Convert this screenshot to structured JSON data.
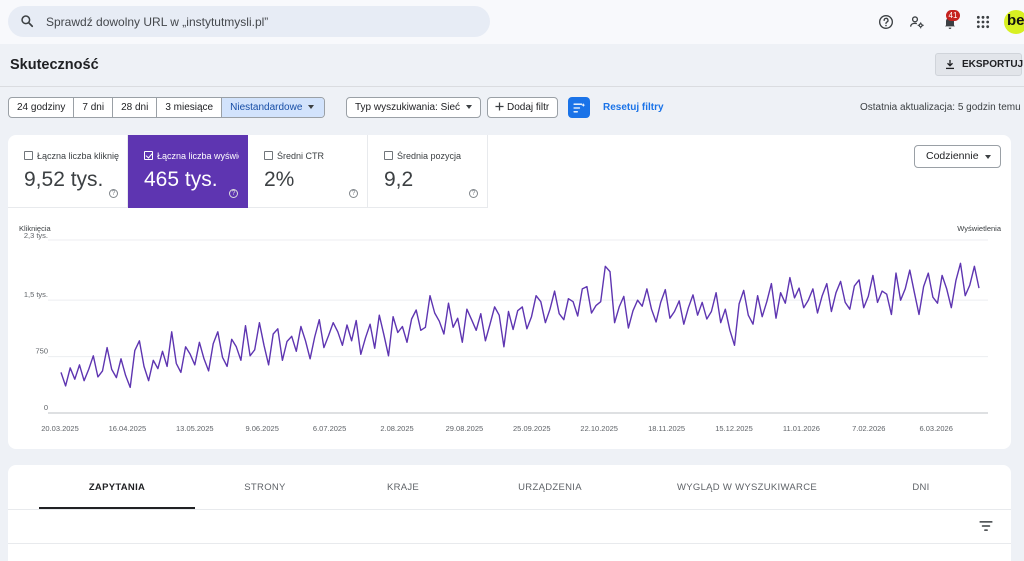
{
  "search": {
    "placeholder": "Sprawdź dowolny URL w „instytutmysli.pl”"
  },
  "topbar": {
    "notification_count": "41",
    "avatar_text": "be"
  },
  "header": {
    "title": "Skuteczność",
    "export_label": "EKSPORTUJ"
  },
  "date_ranges": [
    {
      "label": "24 godziny",
      "active": false
    },
    {
      "label": "7 dni",
      "active": false
    },
    {
      "label": "28 dni",
      "active": false
    },
    {
      "label": "3 miesiące",
      "active": false
    },
    {
      "label": "Niestandardowe",
      "active": true
    }
  ],
  "filters": {
    "search_type": "Typ wyszukiwania: Sieć",
    "add_filter": "Dodaj filtr",
    "reset": "Resetuj filtry",
    "last_update": "Ostatnia aktualizacja: 5 godzin temu"
  },
  "metrics": [
    {
      "label": "Łączna liczba kliknięć",
      "value": "9,52 tys.",
      "selected": false
    },
    {
      "label": "Łączna liczba wyświetleń",
      "value": "465 tys.",
      "selected": true
    },
    {
      "label": "Średni CTR",
      "value": "2%",
      "selected": false
    },
    {
      "label": "Średnia pozycja",
      "value": "9,2",
      "selected": false
    }
  ],
  "period": {
    "selected": "Codziennie"
  },
  "chart_data": {
    "type": "line",
    "left_axis_title": "Kliknięcia",
    "right_axis_title": "Wyświetlenia",
    "y_tick_labels": [
      "0",
      "750",
      "1,5 tys.",
      "2,3 tys."
    ],
    "y_tick_values": [
      0,
      750,
      1500,
      2300
    ],
    "ylim": [
      0,
      2300
    ],
    "grid": true,
    "x_tick_labels": [
      "20.03.2025",
      "16.04.2025",
      "13.05.2025",
      "9.06.2025",
      "6.07.2025",
      "2.08.2025",
      "29.08.2025",
      "25.09.2025",
      "22.10.2025",
      "18.11.2025",
      "15.12.2025",
      "11.01.2026",
      "7.02.2026",
      "6.03.2026"
    ],
    "x_start": "2025-03-20",
    "x_end": "2026-03-24",
    "series": [
      {
        "color": "#5e35b1",
        "values": [
          540,
          360,
          600,
          450,
          640,
          430,
          580,
          760,
          480,
          560,
          870,
          580,
          470,
          720,
          500,
          340,
          830,
          960,
          620,
          430,
          700,
          590,
          820,
          620,
          1080,
          660,
          540,
          880,
          780,
          640,
          940,
          720,
          560,
          920,
          1080,
          740,
          620,
          980,
          880,
          700,
          1160,
          760,
          840,
          1200,
          900,
          640,
          1050,
          1120,
          700,
          950,
          1020,
          820,
          1150,
          960,
          720,
          1010,
          1240,
          870,
          1030,
          1200,
          1080,
          900,
          1170,
          960,
          1230,
          780,
          1000,
          1180,
          860,
          1300,
          1040,
          760,
          1280,
          1070,
          1150,
          940,
          1250,
          1370,
          1100,
          1140,
          1560,
          1330,
          1220,
          1050,
          1460,
          1140,
          1260,
          940,
          1380,
          1240,
          1100,
          1320,
          960,
          1180,
          1410,
          1300,
          880,
          1350,
          1110,
          1360,
          1410,
          1120,
          1280,
          1560,
          1480,
          1200,
          1380,
          1620,
          1320,
          1240,
          1520,
          1480,
          1290,
          1650,
          1680,
          1330,
          1430,
          1480,
          1950,
          1880,
          1200,
          1410,
          1550,
          1130,
          1360,
          1500,
          1420,
          1650,
          1380,
          1210,
          1470,
          1640,
          1260,
          1350,
          1490,
          1180,
          1400,
          1570,
          1300,
          1470,
          1250,
          1350,
          1600,
          1200,
          1380,
          1100,
          900,
          1450,
          1630,
          1300,
          1180,
          1560,
          1280,
          1480,
          1720,
          1260,
          1600,
          1460,
          1800,
          1530,
          1660,
          1400,
          1500,
          1650,
          1330,
          1560,
          1720,
          1350,
          1600,
          1750,
          1470,
          1380,
          1690,
          1770,
          1400,
          1550,
          1830,
          1470,
          1620,
          1580,
          1310,
          1860,
          1500,
          1650,
          1900,
          1600,
          1310,
          1680,
          1860,
          1540,
          1460,
          1830,
          1650,
          1400,
          1760,
          1990,
          1560,
          1700,
          1950,
          1660
        ]
      }
    ]
  },
  "tabs": [
    {
      "label": "ZAPYTANIA",
      "active": true
    },
    {
      "label": "STRONY",
      "active": false
    },
    {
      "label": "KRAJE",
      "active": false
    },
    {
      "label": "URZĄDZENIA",
      "active": false
    },
    {
      "label": "WYGLĄD W WYSZUKIWARCE",
      "active": false
    },
    {
      "label": "DNI",
      "active": false
    }
  ],
  "colors": {
    "accent": "#5e35b1",
    "link": "#1a73e8",
    "active_range": "#d2e3fc"
  }
}
